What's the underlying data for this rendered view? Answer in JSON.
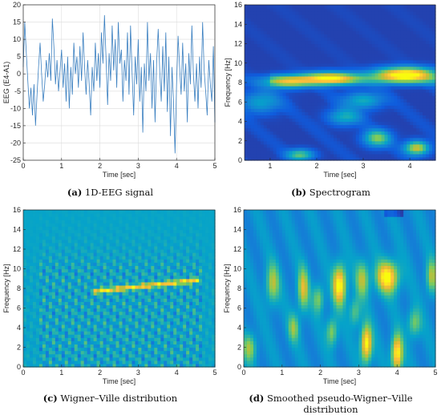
{
  "chart_data": [
    {
      "type": "line",
      "caption_letter": "(a)",
      "caption_text": "1D-EEG signal",
      "xlabel": "Time [sec]",
      "ylabel": "EEG (E4-A1)",
      "xlim": [
        0,
        5
      ],
      "ylim": [
        -25,
        20
      ],
      "xticks": [
        0,
        1,
        2,
        3,
        4,
        5
      ],
      "yticks": [
        -25,
        -20,
        -15,
        -10,
        -5,
        0,
        5,
        10,
        15,
        20
      ],
      "grid": true,
      "line_color": "#3a7fc0",
      "x": [
        0,
        0.04,
        0.08,
        0.12,
        0.16,
        0.2,
        0.24,
        0.28,
        0.32,
        0.36,
        0.4,
        0.44,
        0.48,
        0.52,
        0.56,
        0.6,
        0.64,
        0.68,
        0.72,
        0.76,
        0.8,
        0.84,
        0.88,
        0.92,
        0.96,
        1.0,
        1.04,
        1.08,
        1.12,
        1.16,
        1.2,
        1.24,
        1.28,
        1.32,
        1.36,
        1.4,
        1.44,
        1.48,
        1.52,
        1.56,
        1.6,
        1.64,
        1.68,
        1.72,
        1.76,
        1.8,
        1.84,
        1.88,
        1.92,
        1.96,
        2.0,
        2.04,
        2.08,
        2.12,
        2.16,
        2.2,
        2.24,
        2.28,
        2.32,
        2.36,
        2.4,
        2.44,
        2.48,
        2.52,
        2.56,
        2.6,
        2.64,
        2.68,
        2.72,
        2.76,
        2.8,
        2.84,
        2.88,
        2.92,
        2.96,
        3.0,
        3.04,
        3.08,
        3.12,
        3.16,
        3.2,
        3.24,
        3.28,
        3.32,
        3.36,
        3.4,
        3.44,
        3.48,
        3.52,
        3.56,
        3.6,
        3.64,
        3.68,
        3.72,
        3.76,
        3.8,
        3.84,
        3.88,
        3.92,
        3.96,
        4.0,
        4.04,
        4.08,
        4.12,
        4.16,
        4.2,
        4.24,
        4.28,
        4.32,
        4.36,
        4.4,
        4.44,
        4.48,
        4.52,
        4.56,
        4.6,
        4.64,
        4.68,
        4.72,
        4.76,
        4.8,
        4.84,
        4.88,
        4.92,
        4.96,
        5.0
      ],
      "values": [
        2,
        15,
        6,
        -2,
        -10,
        -4,
        -12,
        -3,
        -15,
        -6,
        2,
        9,
        0,
        -8,
        -3,
        4,
        -1,
        6,
        -2,
        16,
        8,
        -3,
        4,
        -5,
        1,
        7,
        -4,
        3,
        -8,
        5,
        -10,
        2,
        -6,
        9,
        0,
        5,
        -4,
        8,
        -2,
        12,
        2,
        -6,
        4,
        -3,
        -12,
        2,
        -5,
        9,
        -2,
        6,
        -4,
        12,
        3,
        17,
        5,
        -9,
        6,
        -2,
        14,
        1,
        10,
        -4,
        15,
        3,
        7,
        -8,
        4,
        -2,
        12,
        -6,
        14,
        0,
        -12,
        5,
        -3,
        10,
        -8,
        2,
        -17,
        3,
        -5,
        15,
        -2,
        6,
        -10,
        4,
        -14,
        3,
        13,
        1,
        -8,
        8,
        -5,
        12,
        -11,
        5,
        -18,
        2,
        -8,
        -23,
        -3,
        11,
        2,
        -6,
        9,
        -5,
        3,
        -14,
        6,
        -3,
        14,
        0,
        -8,
        3,
        -10,
        5,
        -4,
        15,
        1,
        -5,
        -12,
        4,
        -3,
        -8,
        8,
        -14
      ],
      "caption_bind": "a"
    },
    {
      "type": "heatmap",
      "caption_letter": "(b)",
      "caption_text": "Spectrogram",
      "xlabel": "Time [sec]",
      "ylabel": "Frequency [Hz]",
      "xlim": [
        0.45,
        4.55
      ],
      "ylim": [
        0,
        16
      ],
      "xticks": [
        1,
        2,
        3,
        4
      ],
      "yticks": [
        0,
        2,
        4,
        6,
        8,
        10,
        12,
        14,
        16
      ],
      "colormap": "parula",
      "features": [
        {
          "t": 1.4,
          "f": 8.1,
          "amp": 0.55,
          "st": 0.35,
          "sf": 0.45
        },
        {
          "t": 2.3,
          "f": 8.5,
          "amp": 0.75,
          "st": 0.4,
          "sf": 0.45
        },
        {
          "t": 3.9,
          "f": 8.9,
          "amp": 1.0,
          "st": 0.45,
          "sf": 0.5
        },
        {
          "t": 3.3,
          "f": 2.3,
          "amp": 0.55,
          "st": 0.2,
          "sf": 0.6
        },
        {
          "t": 4.15,
          "f": 1.3,
          "amp": 0.7,
          "st": 0.18,
          "sf": 0.5
        },
        {
          "t": 1.65,
          "f": 0.6,
          "amp": 0.5,
          "st": 0.2,
          "sf": 0.4
        },
        {
          "t": 2.6,
          "f": 4.5,
          "amp": 0.35,
          "st": 0.25,
          "sf": 0.6
        },
        {
          "t": 0.8,
          "f": 6.0,
          "amp": 0.3,
          "st": 0.3,
          "sf": 0.8
        },
        {
          "t": 3.0,
          "f": 6.2,
          "amp": 0.35,
          "st": 0.3,
          "sf": 0.6
        }
      ]
    },
    {
      "type": "heatmap",
      "caption_letter": "(c)",
      "caption_text": "Wigner–Ville distribution",
      "xlabel": "Time [sec]",
      "ylabel": "Frequency [Hz]",
      "xlim": [
        0,
        5
      ],
      "ylim": [
        0,
        16
      ],
      "xticks": [
        0,
        1,
        2,
        3,
        4,
        5
      ],
      "yticks": [
        0,
        2,
        4,
        6,
        8,
        10,
        12,
        14,
        16
      ],
      "colormap": "parula",
      "ridge": {
        "t_start": 1.8,
        "t_end": 4.6,
        "f_start": 7.7,
        "f_end": 8.9,
        "amp": 1.0
      }
    },
    {
      "type": "heatmap",
      "caption_letter": "(d)",
      "caption_text": "Smoothed pseudo-Wigner–Ville distribution",
      "xlabel": "Time [sec]",
      "ylabel": "Frequency [Hz]",
      "xlim": [
        0,
        5
      ],
      "ylim": [
        0,
        16
      ],
      "xticks": [
        0,
        1,
        2,
        3,
        4,
        5
      ],
      "yticks": [
        0,
        2,
        4,
        6,
        8,
        10,
        12,
        14,
        16
      ],
      "colormap": "parula",
      "features": [
        {
          "t": 2.5,
          "f": 8.4,
          "amp": 1.0,
          "st": 0.12,
          "sf": 1.4
        },
        {
          "t": 3.75,
          "f": 9.2,
          "amp": 1.0,
          "st": 0.2,
          "sf": 1.1
        },
        {
          "t": 3.2,
          "f": 2.4,
          "amp": 1.0,
          "st": 0.1,
          "sf": 1.3
        },
        {
          "t": 4.0,
          "f": 1.4,
          "amp": 1.0,
          "st": 0.1,
          "sf": 1.3
        },
        {
          "t": 1.55,
          "f": 8.0,
          "amp": 0.65,
          "st": 0.1,
          "sf": 1.5
        },
        {
          "t": 0.75,
          "f": 8.5,
          "amp": 0.55,
          "st": 0.12,
          "sf": 1.4
        },
        {
          "t": 3.1,
          "f": 9.0,
          "amp": 0.55,
          "st": 0.12,
          "sf": 1.3
        },
        {
          "t": 4.9,
          "f": 9.2,
          "amp": 0.55,
          "st": 0.1,
          "sf": 1.2
        },
        {
          "t": 1.95,
          "f": 7.0,
          "amp": 0.45,
          "st": 0.1,
          "sf": 1.0
        },
        {
          "t": 0.15,
          "f": 2.0,
          "amp": 0.5,
          "st": 0.12,
          "sf": 1.0
        },
        {
          "t": 2.3,
          "f": 3.6,
          "amp": 0.5,
          "st": 0.1,
          "sf": 1.0
        },
        {
          "t": 1.3,
          "f": 4.0,
          "amp": 0.45,
          "st": 0.1,
          "sf": 1.0
        },
        {
          "t": 4.45,
          "f": 4.5,
          "amp": 0.45,
          "st": 0.12,
          "sf": 1.0
        },
        {
          "t": 2.9,
          "f": 5.6,
          "amp": 0.4,
          "st": 0.1,
          "sf": 1.0
        }
      ]
    }
  ]
}
